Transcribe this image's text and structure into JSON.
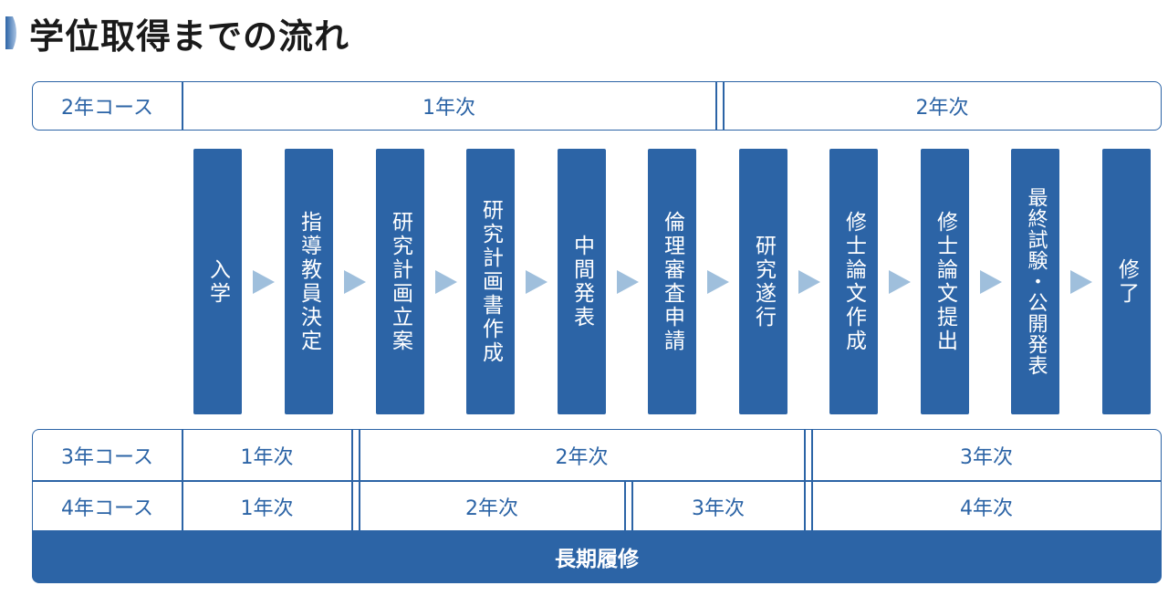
{
  "title": "学位取得までの流れ",
  "colors": {
    "primary": "#2c64a6",
    "arrow": "#9fbfdc",
    "marker_start": "#2c64a6",
    "marker_end": "#a9c3e3"
  },
  "course_2": {
    "label": "2年コース",
    "years": [
      "1年次",
      "2年次"
    ]
  },
  "steps": [
    "入学",
    "指導教員決定",
    "研究計画立案",
    "研究計画書作成",
    "中間発表",
    "倫理審査申請",
    "研究遂行",
    "修士論文作成",
    "修士論文提出",
    "最終試験・公開発表",
    "修了"
  ],
  "course_3": {
    "label": "3年コース",
    "years": [
      "1年次",
      "2年次",
      "3年次"
    ]
  },
  "course_4": {
    "label": "4年コース",
    "years": [
      "1年次",
      "2年次",
      "3年次",
      "4年次"
    ]
  },
  "long_term": "長期履修"
}
